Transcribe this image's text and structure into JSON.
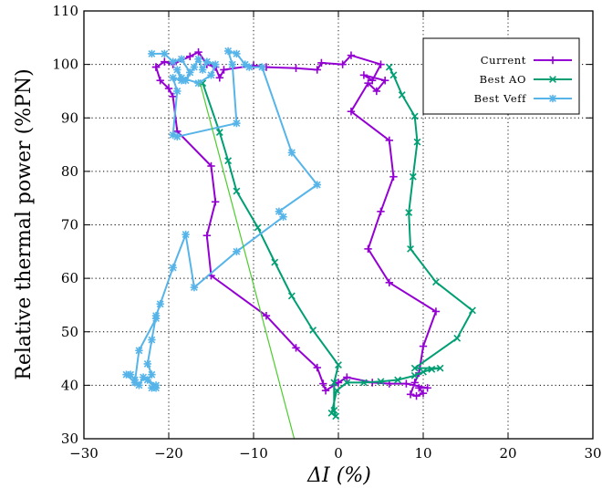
{
  "chart_data": {
    "type": "line",
    "xlabel": "ΔI (%)",
    "ylabel": "Relative thermal power (%PN)",
    "xlim": [
      -30,
      30
    ],
    "ylim": [
      30,
      110
    ],
    "xticks": [
      -30,
      -20,
      -10,
      0,
      10,
      20,
      30
    ],
    "yticks": [
      30,
      40,
      50,
      60,
      70,
      80,
      90,
      100,
      110
    ],
    "xtick_labels": [
      "−30",
      "−20",
      "−10",
      "0",
      "10",
      "20",
      "30"
    ],
    "ytick_labels": [
      "30",
      "40",
      "50",
      "60",
      "70",
      "80",
      "90",
      "100",
      "110"
    ],
    "grid": true,
    "grid_style": "dotted",
    "legend_position": "top-right",
    "series": [
      {
        "name": "Current",
        "color": "#9400d3",
        "marker": "plus",
        "points": [
          [
            -21.5,
            99.5
          ],
          [
            -20.5,
            100.5
          ],
          [
            -19.5,
            100.0
          ],
          [
            -17.5,
            101.5
          ],
          [
            -16.5,
            102.3
          ],
          [
            -15.5,
            100.0
          ],
          [
            -14.5,
            99.5
          ],
          [
            -14.0,
            97.5
          ],
          [
            -13.5,
            99.0
          ],
          [
            -10.0,
            99.8
          ],
          [
            -8.5,
            99.5
          ],
          [
            -5.0,
            99.3
          ],
          [
            -2.5,
            99.0
          ],
          [
            -2.0,
            100.3
          ],
          [
            0.5,
            100.0
          ],
          [
            1.5,
            101.7
          ],
          [
            5.0,
            100.0
          ],
          [
            4.0,
            97.0
          ],
          [
            3.0,
            98.0
          ],
          [
            5.5,
            97.0
          ],
          [
            4.5,
            95.0
          ],
          [
            3.5,
            96.5
          ],
          [
            1.5,
            91.2
          ],
          [
            6.0,
            85.8
          ],
          [
            6.5,
            79.0
          ],
          [
            5.0,
            72.5
          ],
          [
            3.5,
            65.5
          ],
          [
            6.0,
            59.2
          ],
          [
            11.5,
            53.8
          ],
          [
            10.0,
            47.3
          ],
          [
            9.5,
            42.3
          ],
          [
            9.0,
            40.5
          ],
          [
            8.5,
            38.3
          ],
          [
            9.2,
            38.0
          ],
          [
            10.0,
            38.5
          ],
          [
            9.5,
            39.5
          ],
          [
            10.5,
            39.5
          ],
          [
            8.0,
            40.3
          ],
          [
            6.0,
            40.3
          ],
          [
            4.0,
            40.5
          ],
          [
            1.0,
            41.5
          ],
          [
            0.0,
            40.5
          ],
          [
            -0.5,
            40.0
          ],
          [
            -1.5,
            39.0
          ],
          [
            -1.8,
            40.3
          ],
          [
            -2.5,
            43.3
          ],
          [
            -5.0,
            47.0
          ],
          [
            -8.5,
            53.0
          ],
          [
            -15.0,
            60.5
          ],
          [
            -15.5,
            68.0
          ],
          [
            -14.5,
            74.3
          ],
          [
            -15.0,
            81.0
          ],
          [
            -19.0,
            87.5
          ],
          [
            -19.5,
            94.0
          ],
          [
            -20.0,
            95.5
          ],
          [
            -21.0,
            97.0
          ],
          [
            -21.5,
            99.5
          ]
        ]
      },
      {
        "name": "Best AO",
        "color": "#009e73",
        "marker": "cross",
        "points": [
          [
            -16.0,
            96.5
          ],
          [
            -14.0,
            87.3
          ],
          [
            -13.0,
            82.0
          ],
          [
            -12.0,
            76.3
          ],
          [
            -9.5,
            69.5
          ],
          [
            -7.5,
            63.0
          ],
          [
            -5.5,
            56.7
          ],
          [
            -3.0,
            50.3
          ],
          [
            0.0,
            43.8
          ],
          [
            -0.5,
            40.5
          ],
          [
            -0.5,
            35.3
          ],
          [
            -0.3,
            34.2
          ],
          [
            -0.8,
            34.8
          ],
          [
            -0.2,
            39.0
          ],
          [
            1.0,
            40.5
          ],
          [
            3.0,
            40.5
          ],
          [
            5.0,
            40.7
          ],
          [
            7.0,
            41.0
          ],
          [
            9.0,
            41.8
          ],
          [
            10.0,
            42.5
          ],
          [
            11.0,
            43.0
          ],
          [
            12.0,
            43.2
          ],
          [
            9.0,
            43.2
          ],
          [
            14.0,
            48.8
          ],
          [
            15.8,
            54.0
          ],
          [
            11.5,
            59.3
          ],
          [
            8.5,
            65.5
          ],
          [
            8.3,
            72.3
          ],
          [
            8.8,
            79.0
          ],
          [
            9.3,
            85.5
          ],
          [
            9.0,
            90.3
          ],
          [
            7.5,
            94.3
          ],
          [
            6.5,
            98.0
          ],
          [
            6.0,
            99.5
          ]
        ]
      },
      {
        "name": "Best Veff",
        "color": "#56b4e9",
        "marker": "star",
        "points": [
          [
            -22.0,
            102.0
          ],
          [
            -20.5,
            102.0
          ],
          [
            -19.5,
            100.5
          ],
          [
            -18.5,
            101.0
          ],
          [
            -17.5,
            98.5
          ],
          [
            -18.0,
            97.0
          ],
          [
            -17.0,
            99.5
          ],
          [
            -16.5,
            101.0
          ],
          [
            -16.0,
            99.0
          ],
          [
            -15.5,
            100.5
          ],
          [
            -14.5,
            100.0
          ],
          [
            -15.0,
            98.0
          ],
          [
            -16.5,
            96.5
          ],
          [
            -18.5,
            97.5
          ],
          [
            -19.0,
            99.0
          ],
          [
            -18.5,
            97.0
          ],
          [
            -19.5,
            97.5
          ],
          [
            -19.0,
            95.0
          ],
          [
            -19.5,
            86.8
          ],
          [
            -19.0,
            86.5
          ],
          [
            -12.0,
            89.0
          ],
          [
            -12.5,
            100.0
          ],
          [
            -13.0,
            102.5
          ],
          [
            -12.0,
            102.0
          ],
          [
            -11.0,
            100.0
          ],
          [
            -10.5,
            99.5
          ],
          [
            -9.0,
            99.5
          ],
          [
            -5.5,
            83.5
          ],
          [
            -2.5,
            77.5
          ],
          [
            -7.0,
            72.5
          ],
          [
            -6.5,
            71.5
          ],
          [
            -12.0,
            65.0
          ],
          [
            -17.0,
            58.3
          ],
          [
            -18.0,
            68.2
          ],
          [
            -19.5,
            62.0
          ],
          [
            -21.0,
            55.2
          ],
          [
            -21.5,
            53.0
          ],
          [
            -22.0,
            48.5
          ],
          [
            -22.5,
            44.0
          ],
          [
            -22.0,
            42.0
          ],
          [
            -22.5,
            41.0
          ],
          [
            -21.5,
            40.0
          ],
          [
            -22.0,
            39.5
          ],
          [
            -21.5,
            39.5
          ],
          [
            -23.0,
            41.5
          ],
          [
            -23.5,
            40.0
          ],
          [
            -24.0,
            41.0
          ],
          [
            -24.5,
            42.0
          ],
          [
            -25.0,
            42.0
          ],
          [
            -24.0,
            40.5
          ],
          [
            -23.5,
            46.5
          ],
          [
            -21.5,
            52.5
          ]
        ]
      },
      {
        "name": "",
        "color": "#4ccc2e",
        "marker": "none",
        "points": [
          [
            -16.3,
            96.5
          ],
          [
            -5.2,
            30.0
          ]
        ]
      }
    ]
  }
}
